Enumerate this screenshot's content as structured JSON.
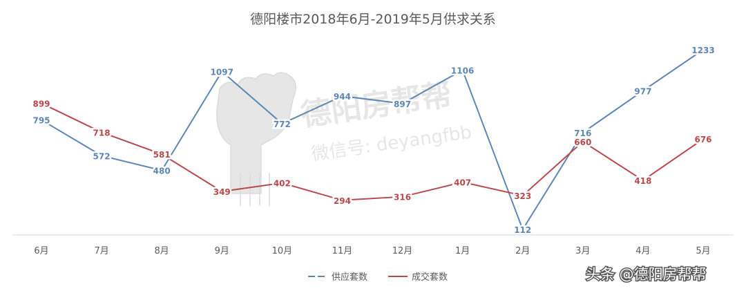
{
  "chart_data": {
    "type": "line",
    "title": "德阳楼市2018年6月-2019年5月供求关系",
    "xlabel": "",
    "ylabel": "",
    "categories": [
      "6月",
      "7月",
      "8月",
      "9月",
      "10月",
      "11月",
      "12月",
      "1月",
      "2月",
      "3月",
      "4月",
      "5月"
    ],
    "series": [
      {
        "name": "供应套数",
        "color": "#5b86b5",
        "dash": true,
        "values": [
          795,
          572,
          480,
          1097,
          772,
          944,
          897,
          1106,
          112,
          716,
          977,
          1233
        ]
      },
      {
        "name": "成交套数",
        "color": "#b9484b",
        "dash": false,
        "values": [
          899,
          718,
          581,
          349,
          402,
          294,
          316,
          407,
          323,
          660,
          418,
          676
        ]
      }
    ],
    "ylim": [
      0,
      1400
    ],
    "grid": false,
    "legend_position": "bottom-center"
  },
  "watermark": {
    "brand": "德阳房帮帮",
    "wechat": "微信号: deyangfbb"
  },
  "credit": "头条 @德阳房帮帮"
}
